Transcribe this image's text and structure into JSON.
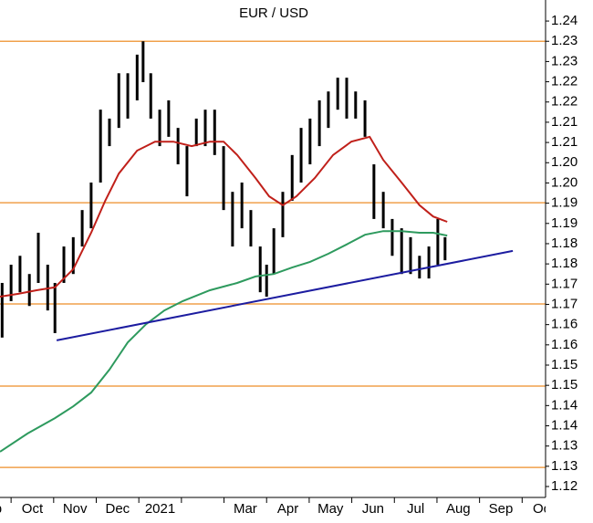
{
  "chart_data": {
    "type": "stock",
    "title": "EUR / USD",
    "xlim": [
      0.74,
      13.55
    ],
    "xticks": [
      {
        "value": 0,
        "label": "Sep"
      },
      {
        "value": 1,
        "label": "Oct"
      },
      {
        "value": 2,
        "label": "Nov"
      },
      {
        "value": 3,
        "label": "Dec"
      },
      {
        "value": 4,
        "label": "2021"
      },
      {
        "value": 5,
        "label": null
      },
      {
        "value": 6,
        "label": "Mar"
      },
      {
        "value": 7,
        "label": "Apr"
      },
      {
        "value": 8,
        "label": "May"
      },
      {
        "value": 9,
        "label": "Jun"
      },
      {
        "value": 10,
        "label": "Jul"
      },
      {
        "value": 11,
        "label": "Aug"
      },
      {
        "value": 12,
        "label": "Sep"
      },
      {
        "value": 13,
        "label": "Oct"
      }
    ],
    "ylim": [
      1.1198,
      1.2427
    ],
    "yticks": [
      {
        "value": 1.2375,
        "label": "1.24"
      },
      {
        "value": 1.2325,
        "label": "1.23"
      },
      {
        "value": 1.2275,
        "label": "1.23"
      },
      {
        "value": 1.2225,
        "label": "1.22"
      },
      {
        "value": 1.2175,
        "label": "1.22"
      },
      {
        "value": 1.2125,
        "label": "1.21"
      },
      {
        "value": 1.2075,
        "label": "1.21"
      },
      {
        "value": 1.2025,
        "label": "1.20"
      },
      {
        "value": 1.1975,
        "label": "1.20"
      },
      {
        "value": 1.1925,
        "label": "1.19"
      },
      {
        "value": 1.1875,
        "label": "1.19"
      },
      {
        "value": 1.1825,
        "label": "1.18"
      },
      {
        "value": 1.1775,
        "label": "1.18"
      },
      {
        "value": 1.1725,
        "label": "1.17"
      },
      {
        "value": 1.1675,
        "label": "1.17"
      },
      {
        "value": 1.1625,
        "label": "1.16"
      },
      {
        "value": 1.1575,
        "label": "1.16"
      },
      {
        "value": 1.1525,
        "label": "1.15"
      },
      {
        "value": 1.1475,
        "label": "1.15"
      },
      {
        "value": 1.1425,
        "label": "1.14"
      },
      {
        "value": 1.1375,
        "label": "1.14"
      },
      {
        "value": 1.1325,
        "label": "1.13"
      },
      {
        "value": 1.1275,
        "label": "1.13"
      },
      {
        "value": 1.1225,
        "label": "1.12"
      }
    ],
    "levels": {
      "color": "#f0a04b",
      "values": [
        1.2325,
        1.1926,
        1.1676,
        1.1473,
        1.1272
      ]
    },
    "price": {
      "color": "#000000",
      "x": [
        0.79,
        1.0,
        1.21,
        1.43,
        1.64,
        1.86,
        2.03,
        2.24,
        2.46,
        2.67,
        2.88,
        3.1,
        3.31,
        3.53,
        3.74,
        3.96,
        4.1,
        4.28,
        4.49,
        4.7,
        4.92,
        5.13,
        5.35,
        5.56,
        5.78,
        5.99,
        6.2,
        6.42,
        6.63,
        6.85,
        7.0,
        7.17,
        7.38,
        7.6,
        7.81,
        8.02,
        8.24,
        8.45,
        8.67,
        8.88,
        9.09,
        9.31,
        9.52,
        9.74,
        9.95,
        10.17,
        10.38,
        10.59,
        10.81,
        11.02,
        11.19
      ],
      "high": [
        1.1728,
        1.1773,
        1.1795,
        1.175,
        1.1852,
        1.1773,
        1.1728,
        1.1818,
        1.1841,
        1.1908,
        1.1976,
        1.2156,
        1.2134,
        1.2246,
        1.2246,
        1.2292,
        1.2325,
        1.2246,
        1.2156,
        1.2179,
        1.2111,
        1.2066,
        1.2134,
        1.2156,
        1.2156,
        1.2066,
        1.1953,
        1.1976,
        1.1908,
        1.1818,
        1.1773,
        1.1863,
        1.1953,
        1.2044,
        1.2111,
        1.2134,
        1.2179,
        1.2201,
        1.2235,
        1.2235,
        1.2201,
        1.2179,
        1.2021,
        1.1953,
        1.1886,
        1.1863,
        1.1841,
        1.1795,
        1.1818,
        1.1886,
        1.1841
      ],
      "low": [
        1.1593,
        1.1683,
        1.1705,
        1.1671,
        1.1728,
        1.166,
        1.1604,
        1.1728,
        1.175,
        1.1818,
        1.1863,
        1.1976,
        1.2066,
        1.2111,
        1.2134,
        1.2179,
        1.2224,
        1.2134,
        1.2066,
        1.2089,
        1.2021,
        1.1942,
        1.2066,
        1.2066,
        1.2044,
        1.1908,
        1.1818,
        1.1863,
        1.1818,
        1.1705,
        1.1694,
        1.175,
        1.1841,
        1.1931,
        1.1976,
        1.2021,
        1.2066,
        1.2111,
        1.2156,
        1.2134,
        1.2134,
        1.2089,
        1.1886,
        1.1863,
        1.1795,
        1.175,
        1.175,
        1.1739,
        1.1739,
        1.1773,
        1.1784
      ]
    },
    "moving_averages": [
      {
        "color": "#c0201a",
        "x": [
          0.74,
          1.17,
          1.6,
          2.03,
          2.46,
          2.88,
          3.21,
          3.53,
          3.96,
          4.38,
          4.81,
          5.24,
          5.67,
          5.99,
          6.31,
          6.74,
          7.06,
          7.38,
          7.7,
          8.13,
          8.56,
          8.99,
          9.42,
          9.74,
          10.17,
          10.59,
          10.91,
          11.24
        ],
        "values": [
          1.1694,
          1.1701,
          1.171,
          1.1717,
          1.1762,
          1.1852,
          1.1931,
          1.1998,
          1.2055,
          1.2077,
          1.2077,
          1.2066,
          1.2077,
          1.2077,
          1.2044,
          1.1987,
          1.1942,
          1.192,
          1.1942,
          1.1987,
          1.2044,
          1.2077,
          1.2089,
          1.2032,
          1.1976,
          1.192,
          1.1892,
          1.1879
        ]
      },
      {
        "color": "#2e9a5e",
        "x": [
          0.74,
          1.39,
          2.03,
          2.46,
          2.88,
          3.31,
          3.74,
          4.17,
          4.6,
          5.03,
          5.67,
          6.31,
          6.74,
          7.17,
          7.6,
          8.02,
          8.45,
          8.88,
          9.31,
          9.74,
          10.17,
          10.59,
          10.91,
          11.24
        ],
        "values": [
          1.1311,
          1.1356,
          1.1394,
          1.1423,
          1.1457,
          1.1514,
          1.1581,
          1.1626,
          1.166,
          1.1683,
          1.171,
          1.1728,
          1.1744,
          1.175,
          1.1766,
          1.178,
          1.18,
          1.1823,
          1.1847,
          1.1856,
          1.1856,
          1.1852,
          1.1852,
          1.1845
        ]
      }
    ],
    "trendline": {
      "color": "#1c1ca0",
      "x": [
        2.07,
        12.78
      ],
      "values": [
        1.1586,
        1.1807
      ]
    }
  }
}
